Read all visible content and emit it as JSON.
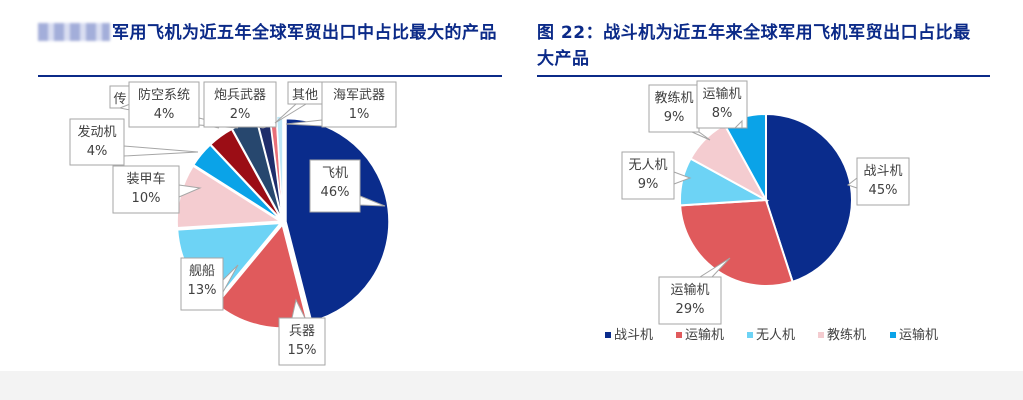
{
  "left_figure": {
    "title_visible_text": "军用飞机为近五年全球军贸出口中占比最大的产品",
    "has_redacted_prefix": true
  },
  "right_figure": {
    "title": "图 22：战斗机为近五年来全球军用飞机军贸出口占比最大产品"
  },
  "chart_data": [
    {
      "type": "pie",
      "title": "",
      "legend": "none",
      "slices": [
        {
          "name": "飞机",
          "value": 46,
          "label": "46%",
          "color": "#0a2c8c"
        },
        {
          "name": "兵器",
          "value": 15,
          "label": "15%",
          "color": "#e05a5c"
        },
        {
          "name": "舰船",
          "value": 13,
          "label": "13%",
          "color": "#6dd3f5"
        },
        {
          "name": "装甲车",
          "value": 10,
          "label": "10%",
          "color": "#f4ccd0"
        },
        {
          "name": "发动机",
          "value": 4,
          "label": "4%",
          "color": "#0aa3e8"
        },
        {
          "name": "传",
          "value": 4,
          "label": "",
          "color": "#9b0d15"
        },
        {
          "name": "防空系统",
          "value": 4,
          "label": "4%",
          "color": "#27476e"
        },
        {
          "name": "炮兵武器",
          "value": 2,
          "label": "2%",
          "color": "#1f2d6b"
        },
        {
          "name": "其他",
          "value": 1,
          "label": "",
          "color": "#e86f78"
        },
        {
          "name": "海军武器",
          "value": 1,
          "label": "1%",
          "color": "#bfe7f7"
        }
      ]
    },
    {
      "type": "pie",
      "title": "",
      "legend": "bottom",
      "slices": [
        {
          "name": "战斗机",
          "value": 45,
          "label": "45%",
          "color": "#0a2c8c"
        },
        {
          "name": "运输机",
          "value": 29,
          "label": "29%",
          "color": "#e05a5c"
        },
        {
          "name": "无人机",
          "value": 9,
          "label": "9%",
          "color": "#6dd3f5"
        },
        {
          "name": "教练机",
          "value": 9,
          "label": "9%",
          "color": "#f4ccd0"
        },
        {
          "name": "运输机",
          "value": 8,
          "label": "8%",
          "color": "#0aa3e8"
        }
      ]
    }
  ]
}
